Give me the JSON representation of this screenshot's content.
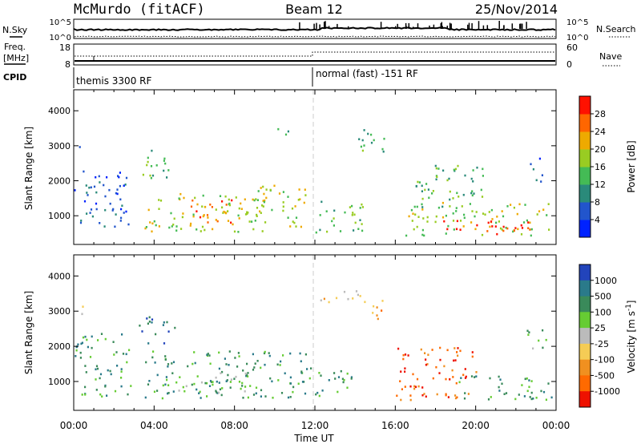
{
  "header": {
    "station": "McMurdo (fitACF)",
    "beam": "Beam 12",
    "date": "25/Nov/2014"
  },
  "summary_panel": {
    "left_labels": {
      "nsky": "N.Sky",
      "freq": "Freq.",
      "freq_unit": "[MHz]",
      "cpid": "CPID"
    },
    "right_labels": {
      "nsearch": "N.Search",
      "nave": "Nave"
    },
    "nsky_ticks": [
      "10^5",
      "10^0"
    ],
    "nsearch_ticks": [
      "10^5",
      "10^0"
    ],
    "freq_ticks": [
      "18",
      "8"
    ],
    "nave_ticks": [
      "60",
      "0"
    ],
    "cpid_left": "themis 3300 RF",
    "cpid_right": "normal (fast) -151 RF",
    "cpid_change_hour": 12
  },
  "chart_data": [
    {
      "type": "heatmap",
      "name": "power",
      "ylabel": "Slant Range [km]",
      "xlabel": "",
      "xlim": [
        0,
        24
      ],
      "ylim": [
        180,
        4600
      ],
      "yticks": [
        "1000",
        "2000",
        "3000",
        "4000"
      ],
      "yticks_values": [
        1000,
        2000,
        3000,
        4000
      ],
      "colorbar": {
        "label": "Power [dB]",
        "ticks": [
          "4",
          "8",
          "12",
          "16",
          "20",
          "24",
          "28"
        ],
        "colors": [
          "#0022ff",
          "#2255cc",
          "#2a8a7a",
          "#44bb55",
          "#99cc22",
          "#eeaa00",
          "#ff6600",
          "#ff1100"
        ]
      },
      "regions": [
        {
          "t0": 0.0,
          "t1": 0.4,
          "r0": 2900,
          "r1": 3200,
          "level": 1
        },
        {
          "t0": 0.0,
          "t1": 2.6,
          "r0": 1500,
          "r1": 2400,
          "level": 1
        },
        {
          "t0": 0.3,
          "t1": 2.8,
          "r0": 600,
          "r1": 1500,
          "level": 1
        },
        {
          "t0": 3.2,
          "t1": 5.0,
          "r0": 2100,
          "r1": 2900,
          "level": 3
        },
        {
          "t0": 3.5,
          "t1": 9.5,
          "r0": 550,
          "r1": 1700,
          "level": 4
        },
        {
          "t0": 5.8,
          "t1": 8.0,
          "r0": 650,
          "r1": 1500,
          "level": 6
        },
        {
          "t0": 8.5,
          "t1": 11.5,
          "r0": 700,
          "r1": 1900,
          "level": 4
        },
        {
          "t0": 10.0,
          "t1": 11.0,
          "r0": 3300,
          "r1": 3600,
          "level": 2
        },
        {
          "t0": 12.0,
          "t1": 14.5,
          "r0": 550,
          "r1": 1500,
          "level": 3
        },
        {
          "t0": 14.0,
          "t1": 15.5,
          "r0": 2800,
          "r1": 3600,
          "level": 3
        },
        {
          "t0": 16.5,
          "t1": 23.8,
          "r0": 450,
          "r1": 1400,
          "level": 4
        },
        {
          "t0": 18.0,
          "t1": 23.0,
          "r0": 500,
          "r1": 900,
          "level": 7
        },
        {
          "t0": 17.0,
          "t1": 20.5,
          "r0": 1200,
          "r1": 2500,
          "level": 3
        },
        {
          "t0": 22.5,
          "t1": 23.3,
          "r0": 2000,
          "r1": 2700,
          "level": 1
        }
      ]
    },
    {
      "type": "heatmap",
      "name": "velocity",
      "ylabel": "Slant Range [km]",
      "xlabel": "Time UT",
      "xlim": [
        0,
        24
      ],
      "ylim": [
        180,
        4600
      ],
      "xticks": [
        "00:00",
        "04:00",
        "08:00",
        "12:00",
        "16:00",
        "20:00",
        "00:00"
      ],
      "yticks": [
        "1000",
        "2000",
        "3000",
        "4000"
      ],
      "yticks_values": [
        1000,
        2000,
        3000,
        4000
      ],
      "colorbar": {
        "label": "Velocity [m s",
        "label_sup": "-1",
        "label_end": "]",
        "ticks": [
          "1000",
          "500",
          "100",
          "25",
          "-25",
          "-100",
          "-500",
          "-1000"
        ],
        "colors": [
          "#2244bb",
          "#2a7a8a",
          "#3a8a5a",
          "#66cc33",
          "#bbbbbb",
          "#f5cc55",
          "#f09020",
          "#ff6a00",
          "#ee1100"
        ]
      },
      "regions": [
        {
          "t0": 0.0,
          "t1": 2.8,
          "r0": 600,
          "r1": 2400,
          "level": 2
        },
        {
          "t0": 0.0,
          "t1": 0.5,
          "r0": 2800,
          "r1": 3200,
          "level": 4
        },
        {
          "t0": 3.2,
          "t1": 5.0,
          "r0": 2100,
          "r1": 2900,
          "level": 1
        },
        {
          "t0": 3.5,
          "t1": 11.8,
          "r0": 550,
          "r1": 1900,
          "level": 2
        },
        {
          "t0": 5.0,
          "t1": 9.0,
          "r0": 700,
          "r1": 1300,
          "level": 3
        },
        {
          "t0": 12.0,
          "t1": 14.5,
          "r0": 3200,
          "r1": 3600,
          "level": 5
        },
        {
          "t0": 12.0,
          "t1": 14.0,
          "r0": 550,
          "r1": 1400,
          "level": 2
        },
        {
          "t0": 14.5,
          "t1": 15.5,
          "r0": 2800,
          "r1": 3400,
          "level": 6
        },
        {
          "t0": 16.0,
          "t1": 20.0,
          "r0": 500,
          "r1": 2000,
          "level": 7
        },
        {
          "t0": 19.0,
          "t1": 23.8,
          "r0": 500,
          "r1": 1200,
          "level": 2
        },
        {
          "t0": 22.5,
          "t1": 23.5,
          "r0": 1800,
          "r1": 2500,
          "level": 3
        }
      ]
    }
  ]
}
